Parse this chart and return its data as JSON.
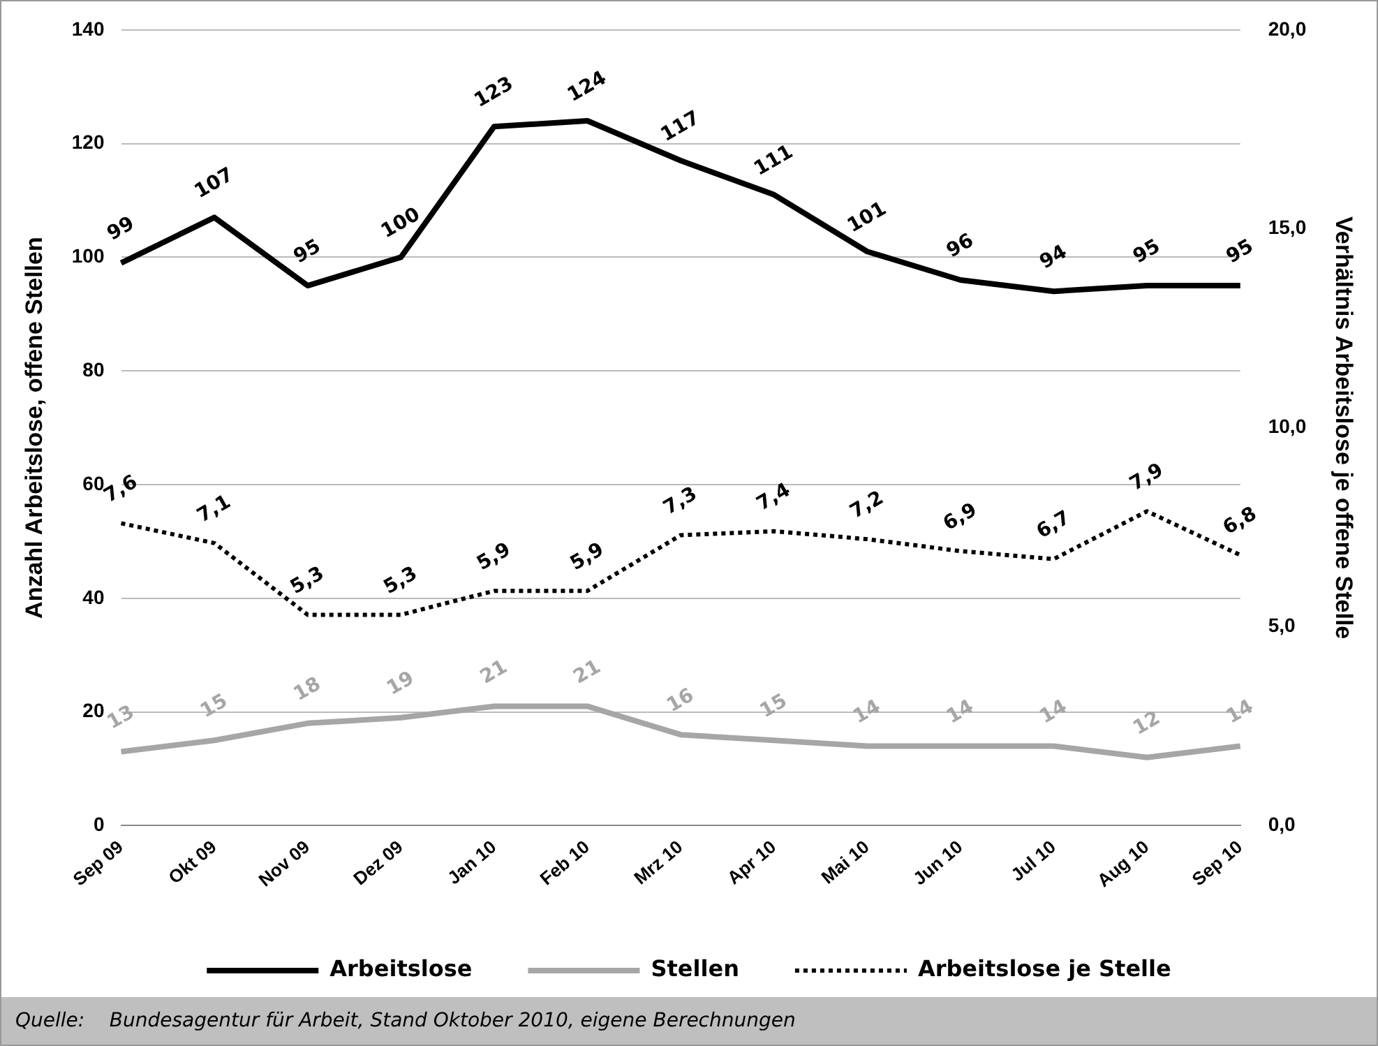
{
  "chart_data": {
    "type": "line",
    "ylabel": "Anzahl Arbeitslose, offene Stellen",
    "y2label": "Verhältnis Arbeitslose je offene Stelle",
    "categories": [
      "Sep 09",
      "Okt 09",
      "Nov 09",
      "Dez 09",
      "Jan 10",
      "Feb 10",
      "Mrz 10",
      "Apr 10",
      "Mai 10",
      "Jun 10",
      "Jul 10",
      "Aug 10",
      "Sep 10"
    ],
    "series": [
      {
        "name": "Arbeitslose",
        "color": "#000000",
        "line_style": "solid",
        "values": [
          99,
          107,
          95,
          100,
          123,
          124,
          117,
          111,
          101,
          96,
          94,
          95,
          95
        ],
        "value_labels": [
          "99",
          "107",
          "95",
          "100",
          "123",
          "124",
          "117",
          "111",
          "101",
          "96",
          "94",
          "95",
          "95"
        ]
      },
      {
        "name": "Stellen",
        "color": "#a6a6a6",
        "line_style": "solid",
        "values": [
          13,
          15,
          18,
          19,
          21,
          21,
          16,
          15,
          14,
          14,
          14,
          12,
          14
        ],
        "value_labels": [
          "13",
          "15",
          "18",
          "19",
          "21",
          "21",
          "16",
          "15",
          "14",
          "14",
          "14",
          "12",
          "14"
        ]
      },
      {
        "name": "Arbeitslose je Stelle",
        "color": "#000000",
        "line_style": "dotted",
        "axis": "y2",
        "values": [
          7.6,
          7.1,
          5.3,
          5.3,
          5.9,
          5.9,
          7.3,
          7.4,
          7.2,
          6.9,
          6.7,
          7.9,
          6.8
        ],
        "value_labels": [
          "7,6",
          "7,1",
          "5,3",
          "5,3",
          "5,9",
          "5,9",
          "7,3",
          "7,4",
          "7,2",
          "6,9",
          "6,7",
          "7,9",
          "6,8"
        ]
      }
    ],
    "ylim": [
      0,
      140
    ],
    "yticks": [
      0,
      20,
      40,
      60,
      80,
      100,
      120,
      140
    ],
    "y2lim": [
      0,
      20
    ],
    "y2ticks": [
      {
        "value": 0,
        "label": "0,0"
      },
      {
        "value": 5,
        "label": "5,0"
      },
      {
        "value": 10,
        "label": "10,0"
      },
      {
        "value": 15,
        "label": "15,0"
      },
      {
        "value": 20,
        "label": "20,0"
      }
    ],
    "grid": "y",
    "legend": "bottom",
    "marker": "none",
    "annotations": [
      "Quelle:    Bundesagentur für Arbeit, Stand Oktober 2010, eigene Berechnungen"
    ]
  }
}
